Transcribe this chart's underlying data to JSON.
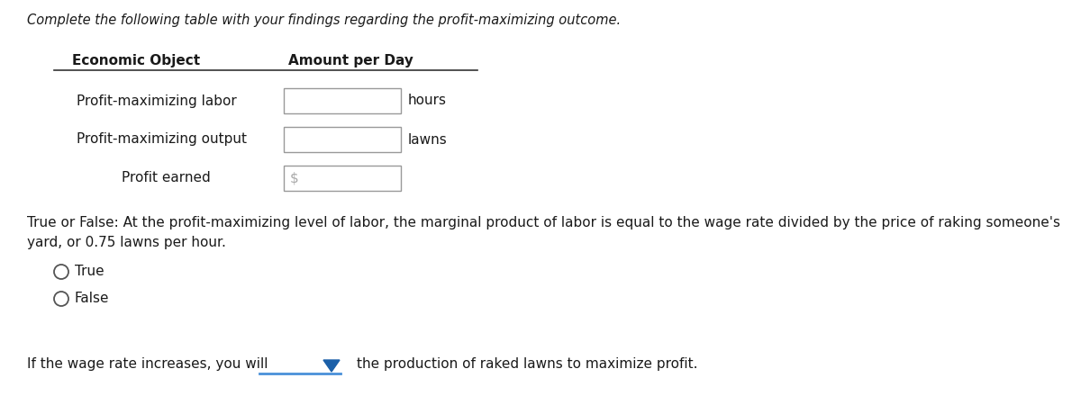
{
  "bg_color": "#ffffff",
  "title_text": "Complete the following table with your findings regarding the profit-maximizing outcome.",
  "title_fontsize": 10.5,
  "table_header_col1": "Economic Object",
  "table_header_col2": "Amount per Day",
  "table_header_fontsize": 11,
  "table_rows": [
    {
      "label": "Profit-maximizing labor",
      "suffix": "hours",
      "prefix": "",
      "label_indent": 0.55
    },
    {
      "label": "Profit-maximizing output",
      "suffix": "lawns",
      "prefix": "",
      "label_indent": 0.55
    },
    {
      "label": "Profit earned",
      "suffix": "",
      "prefix": "$",
      "label_indent": 1.05
    }
  ],
  "true_false_line1": "True or False: At the profit-maximizing level of labor, the marginal product of labor is equal to the wage rate divided by the price of raking someone's",
  "true_false_line2": "yard, or 0.75 lawns per hour.",
  "true_label": "True",
  "false_label": "False",
  "bottom_line_part1": "If the wage rate increases, you will",
  "bottom_line_part2": "the production of raked lawns to maximize profit.",
  "text_color": "#1a1a1a",
  "box_color": "#ffffff",
  "box_edge_color": "#999999",
  "radio_color": "#555555",
  "underline_color": "#4a90d9",
  "dropdown_arrow_color": "#1a5fa8",
  "body_fontsize": 11,
  "fig_width": 12.0,
  "fig_height": 4.5,
  "dpi": 100
}
